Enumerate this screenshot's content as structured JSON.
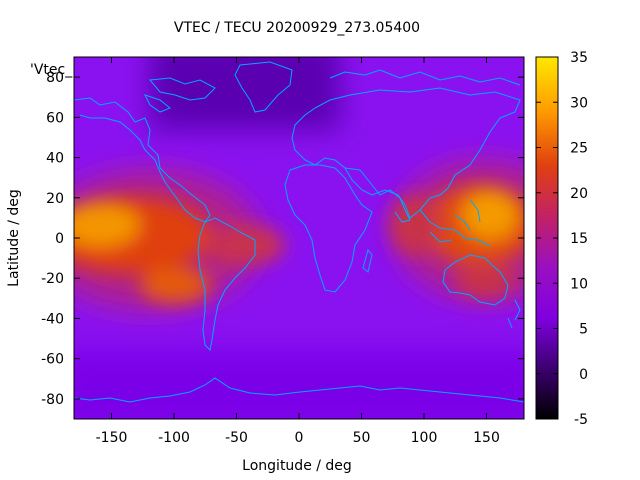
{
  "chart_data": {
    "type": "heatmap",
    "title": "VTEC / TECU 20200929_273.05400",
    "xlabel": "Longitude / deg",
    "ylabel": "Latitude / deg",
    "key_label": "'Vtec_",
    "xlim": [
      -180,
      180
    ],
    "ylim": [
      -90,
      90
    ],
    "xticks": [
      -150,
      -100,
      -50,
      0,
      50,
      100,
      150
    ],
    "yticks": [
      -80,
      -60,
      -40,
      -20,
      0,
      20,
      40,
      60,
      80
    ],
    "colorbar": {
      "range": [
        -5,
        35
      ],
      "ticks": [
        -5,
        0,
        5,
        10,
        15,
        20,
        25,
        30,
        35
      ],
      "palette": [
        "#000000",
        "#4b0082",
        "#8a00ff",
        "#c0207f",
        "#e0400f",
        "#ff8c00",
        "#ffe000"
      ]
    },
    "overlay": "coastlines",
    "coastline_color": "#00a8ff",
    "regions": [
      {
        "name": "background",
        "value": 6
      },
      {
        "name": "arctic-low",
        "lon": [
          -90,
          30
        ],
        "lat": [
          60,
          90
        ],
        "value": 2
      },
      {
        "name": "pacific-east-anomaly",
        "lon": [
          -180,
          -40
        ],
        "lat": [
          -35,
          30
        ],
        "value": 20,
        "peak": 25
      },
      {
        "name": "pacific-west-anomaly",
        "lon": [
          90,
          180
        ],
        "lat": [
          -30,
          30
        ],
        "value": 20,
        "peak": 25
      },
      {
        "name": "south-america-anomaly",
        "lon": [
          -70,
          -30
        ],
        "lat": [
          -25,
          5
        ],
        "value": 14
      },
      {
        "name": "southern-low",
        "lon": [
          -180,
          180
        ],
        "lat": [
          -90,
          -50
        ],
        "value": 5
      }
    ]
  }
}
